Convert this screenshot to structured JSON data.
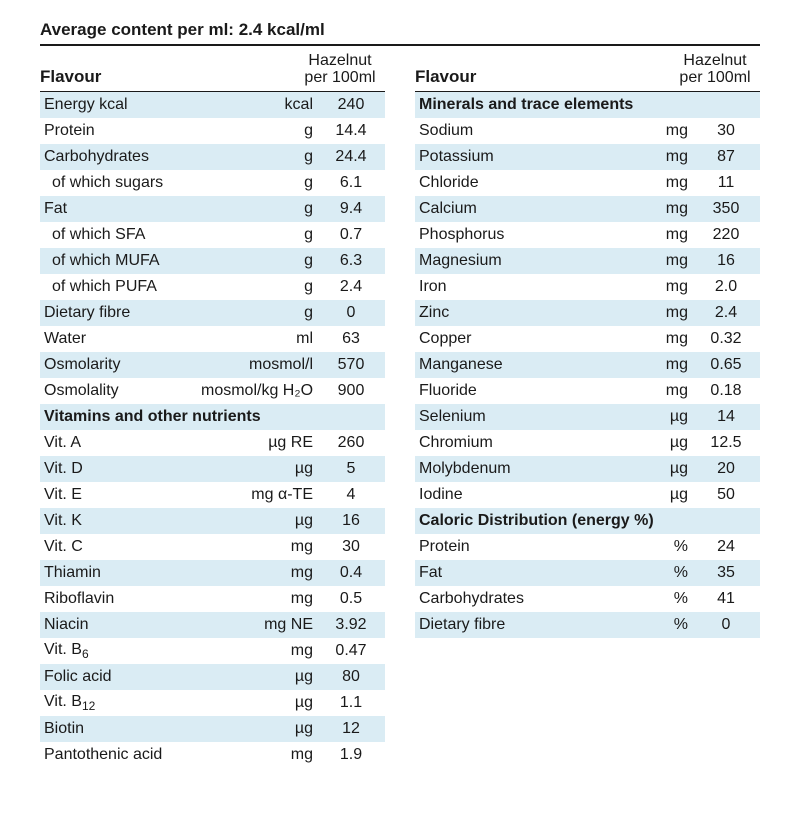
{
  "title": "Average content per ml: 2.4 kcal/ml",
  "header": {
    "flavour": "Flavour",
    "variant": "Hazelnut",
    "per": "per 100ml"
  },
  "colors": {
    "stripe": "#daecf4",
    "text": "#1a1a1a",
    "bg": "#ffffff"
  },
  "left": [
    {
      "type": "row",
      "stripe": true,
      "label": "Energy kcal",
      "unit": "kcal",
      "value": "240"
    },
    {
      "type": "row",
      "stripe": false,
      "label": "Protein",
      "unit": "g",
      "value": "14.4"
    },
    {
      "type": "row",
      "stripe": true,
      "label": "Carbohydrates",
      "unit": "g",
      "value": "24.4"
    },
    {
      "type": "row",
      "stripe": false,
      "label": "of which sugars",
      "indent": true,
      "unit": "g",
      "value": "6.1"
    },
    {
      "type": "row",
      "stripe": true,
      "label": "Fat",
      "unit": "g",
      "value": "9.4"
    },
    {
      "type": "row",
      "stripe": false,
      "label": "of which SFA",
      "indent": true,
      "unit": "g",
      "value": "0.7"
    },
    {
      "type": "row",
      "stripe": true,
      "label": "of which MUFA",
      "indent": true,
      "unit": "g",
      "value": "6.3"
    },
    {
      "type": "row",
      "stripe": false,
      "label": "of which PUFA",
      "indent": true,
      "unit": "g",
      "value": "2.4"
    },
    {
      "type": "row",
      "stripe": true,
      "label": "Dietary fibre",
      "unit": "g",
      "value": "0"
    },
    {
      "type": "row",
      "stripe": false,
      "label": "Water",
      "unit": "ml",
      "value": "63"
    },
    {
      "type": "row",
      "stripe": true,
      "label": "Osmolarity",
      "unit": "mosmol/l",
      "value": "570"
    },
    {
      "type": "row",
      "stripe": false,
      "label": "Osmolality",
      "unit": "mosmol/kg H₂O",
      "value": "900"
    },
    {
      "type": "section",
      "stripe": true,
      "label": "Vitamins and other nutrients"
    },
    {
      "type": "row",
      "stripe": false,
      "label": "Vit. A",
      "unit": "µg RE",
      "value": "260"
    },
    {
      "type": "row",
      "stripe": true,
      "label": "Vit. D",
      "unit": "µg",
      "value": "5"
    },
    {
      "type": "row",
      "stripe": false,
      "label": "Vit. E",
      "unit": "mg α-TE",
      "value": "4"
    },
    {
      "type": "row",
      "stripe": true,
      "label": "Vit. K",
      "unit": "µg",
      "value": "16"
    },
    {
      "type": "row",
      "stripe": false,
      "label": "Vit. C",
      "unit": "mg",
      "value": "30"
    },
    {
      "type": "row",
      "stripe": true,
      "label": "Thiamin",
      "unit": "mg",
      "value": "0.4"
    },
    {
      "type": "row",
      "stripe": false,
      "label": "Riboflavin",
      "unit": "mg",
      "value": "0.5"
    },
    {
      "type": "row",
      "stripe": true,
      "label": "Niacin",
      "unit": "mg NE",
      "value": "3.92"
    },
    {
      "type": "row",
      "stripe": false,
      "label": "Vit. B",
      "sub": "6",
      "unit": "mg",
      "value": "0.47"
    },
    {
      "type": "row",
      "stripe": true,
      "label": "Folic acid",
      "unit": "µg",
      "value": "80"
    },
    {
      "type": "row",
      "stripe": false,
      "label": "Vit. B",
      "sub": "12",
      "unit": "µg",
      "value": "1.1"
    },
    {
      "type": "row",
      "stripe": true,
      "label": "Biotin",
      "unit": "µg",
      "value": "12"
    },
    {
      "type": "row",
      "stripe": false,
      "label": "Pantothenic acid",
      "unit": "mg",
      "value": "1.9"
    }
  ],
  "right": [
    {
      "type": "section",
      "stripe": true,
      "label": "Minerals and trace elements"
    },
    {
      "type": "row",
      "stripe": false,
      "label": "Sodium",
      "unit": "mg",
      "value": "30"
    },
    {
      "type": "row",
      "stripe": true,
      "label": "Potassium",
      "unit": "mg",
      "value": "87"
    },
    {
      "type": "row",
      "stripe": false,
      "label": "Chloride",
      "unit": "mg",
      "value": "11"
    },
    {
      "type": "row",
      "stripe": true,
      "label": "Calcium",
      "unit": "mg",
      "value": "350"
    },
    {
      "type": "row",
      "stripe": false,
      "label": "Phosphorus",
      "unit": "mg",
      "value": "220"
    },
    {
      "type": "row",
      "stripe": true,
      "label": "Magnesium",
      "unit": "mg",
      "value": "16"
    },
    {
      "type": "row",
      "stripe": false,
      "label": "Iron",
      "unit": "mg",
      "value": "2.0"
    },
    {
      "type": "row",
      "stripe": true,
      "label": "Zinc",
      "unit": "mg",
      "value": "2.4"
    },
    {
      "type": "row",
      "stripe": false,
      "label": "Copper",
      "unit": "mg",
      "value": "0.32"
    },
    {
      "type": "row",
      "stripe": true,
      "label": "Manganese",
      "unit": "mg",
      "value": "0.65"
    },
    {
      "type": "row",
      "stripe": false,
      "label": "Fluoride",
      "unit": "mg",
      "value": "0.18"
    },
    {
      "type": "row",
      "stripe": true,
      "label": "Selenium",
      "unit": "µg",
      "value": "14"
    },
    {
      "type": "row",
      "stripe": false,
      "label": "Chromium",
      "unit": "µg",
      "value": "12.5"
    },
    {
      "type": "row",
      "stripe": true,
      "label": "Molybdenum",
      "unit": "µg",
      "value": "20"
    },
    {
      "type": "row",
      "stripe": false,
      "label": "Iodine",
      "unit": "µg",
      "value": "50"
    },
    {
      "type": "section",
      "stripe": true,
      "label": "Caloric Distribution (energy %)"
    },
    {
      "type": "row",
      "stripe": false,
      "label": "Protein",
      "unit": "%",
      "value": "24"
    },
    {
      "type": "row",
      "stripe": true,
      "label": "Fat",
      "unit": "%",
      "value": "35"
    },
    {
      "type": "row",
      "stripe": false,
      "label": "Carbohydrates",
      "unit": "%",
      "value": "41"
    },
    {
      "type": "row",
      "stripe": true,
      "label": "Dietary fibre",
      "unit": "%",
      "value": "0"
    }
  ]
}
